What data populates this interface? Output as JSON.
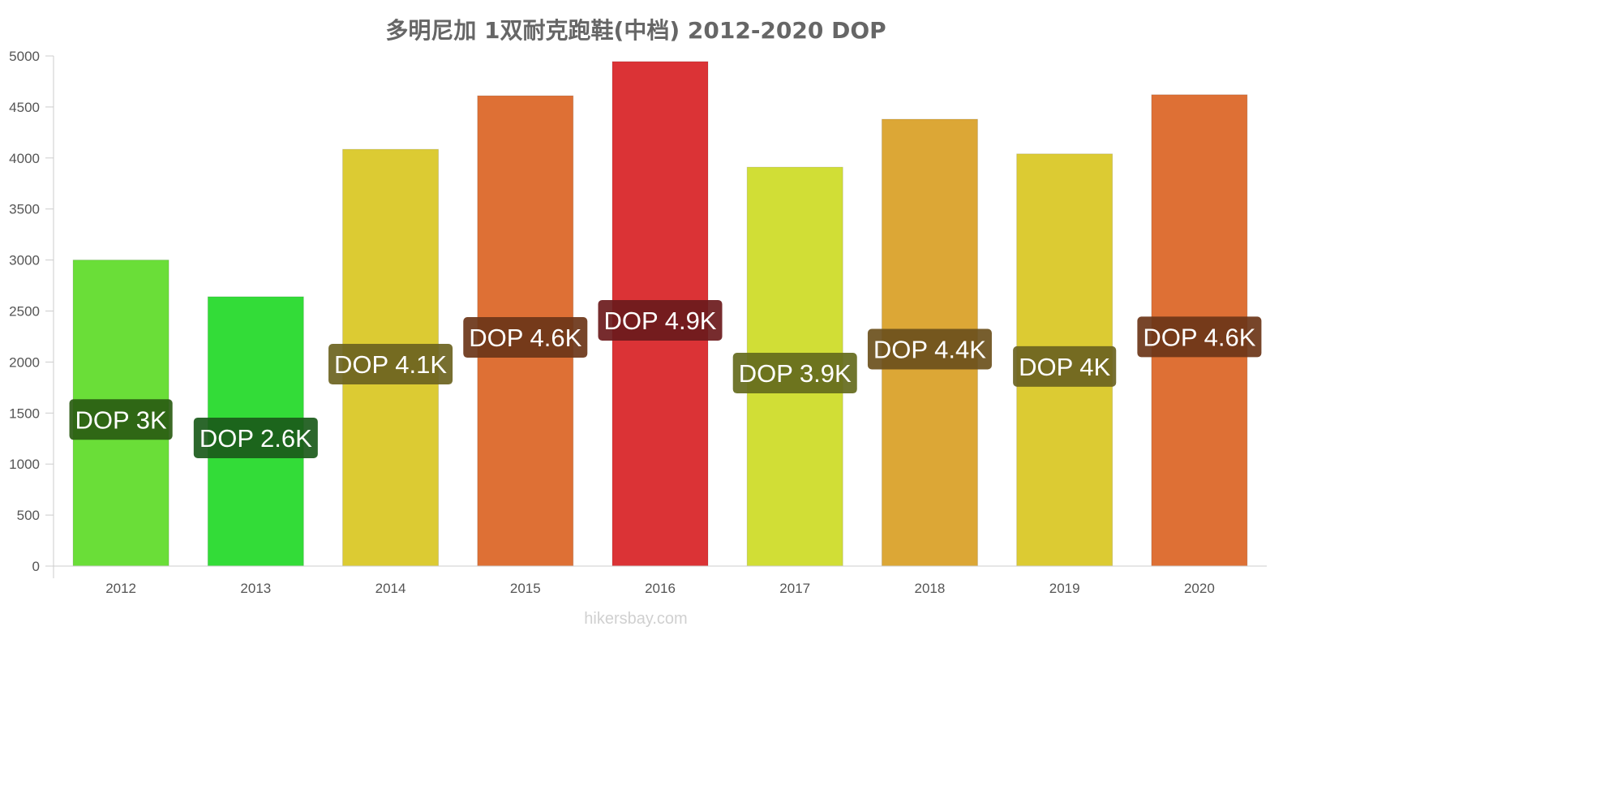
{
  "chart_data": {
    "type": "bar",
    "title": "多明尼加 1双耐克跑鞋(中档) 2012-2020 DOP",
    "xlabel": "",
    "ylabel": "",
    "ylim": [
      0,
      5000
    ],
    "yticks": [
      0,
      500,
      1000,
      1500,
      2000,
      2500,
      3000,
      3500,
      4000,
      4500,
      5000
    ],
    "grid": false,
    "legend": "none",
    "categories": [
      "2012",
      "2013",
      "2014",
      "2015",
      "2016",
      "2017",
      "2018",
      "2019",
      "2020"
    ],
    "values": [
      3000,
      2640,
      4085,
      4610,
      4945,
      3910,
      4380,
      4040,
      4620
    ],
    "data_labels": [
      "DOP 3K",
      "DOP 2.6K",
      "DOP 4.1K",
      "DOP 4.6K",
      "DOP 4.9K",
      "DOP 3.9K",
      "DOP 4.4K",
      "DOP 4K",
      "DOP 4.6K"
    ],
    "bar_colors": [
      "#6ade38",
      "#33dc38",
      "#dccb33",
      "#de7035",
      "#db3336",
      "#d1de36",
      "#dca736",
      "#dccb33",
      "#de7035"
    ],
    "label_colors": [
      "#2a5c12",
      "#1a5a1a",
      "#6b6320",
      "#6b3518",
      "#6b1a1c",
      "#646a1c",
      "#6b501c",
      "#6b6320",
      "#6b3518"
    ]
  },
  "watermark": "hikersbay.com"
}
